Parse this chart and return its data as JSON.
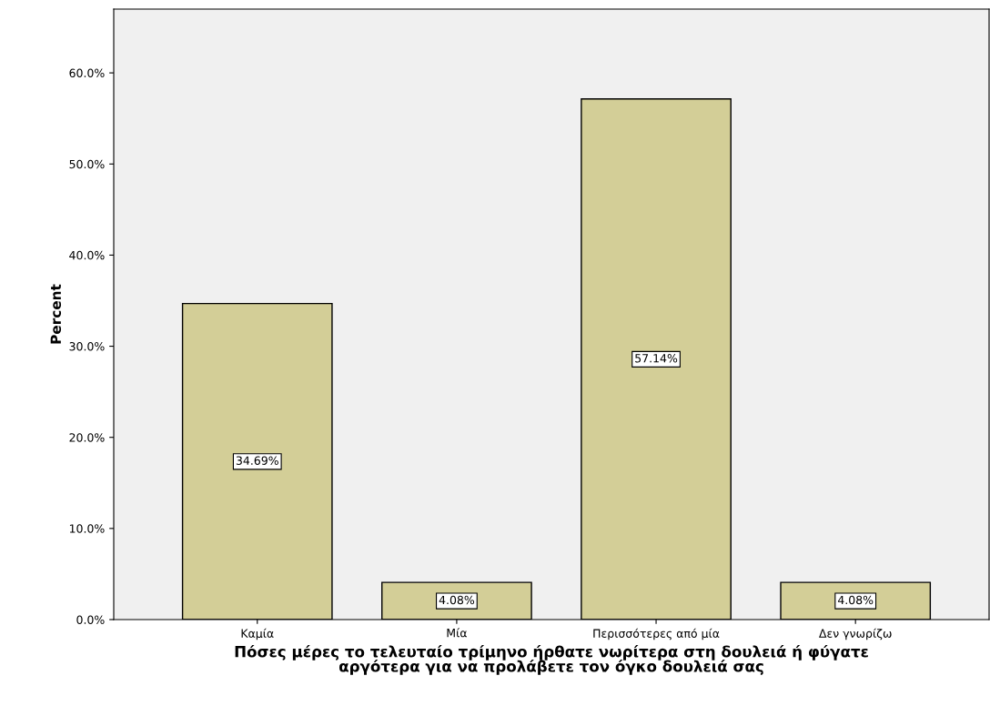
{
  "chart_data": {
    "type": "bar",
    "xlabel": "Πόσες μέρες το τελευταίο τρίμηνο ήρθατε νωρίτερα στη δουλειά ή φύγατε\nαργότερα για να προλάβετε τον όγκο δουλειά σας",
    "ylabel": "Percent",
    "categories": [
      "Καμία",
      "Μία",
      "Περισσότερες από μία",
      "Δεν γνωρίζω"
    ],
    "values": [
      34.69,
      4.08,
      57.14,
      4.08
    ],
    "value_labels": [
      "34.69%",
      "4.08%",
      "57.14%",
      "4.08%"
    ],
    "color": "#d3ce97",
    "ylim": [
      0,
      67
    ],
    "yticks": [
      {
        "value": 0,
        "label": "0.0%"
      },
      {
        "value": 10,
        "label": "10.0%"
      },
      {
        "value": 20,
        "label": "20.0%"
      },
      {
        "value": 30,
        "label": "30.0%"
      },
      {
        "value": 40,
        "label": "40.0%"
      },
      {
        "value": 50,
        "label": "50.0%"
      },
      {
        "value": 60,
        "label": "60.0%"
      }
    ],
    "grid": false,
    "legend": false
  }
}
